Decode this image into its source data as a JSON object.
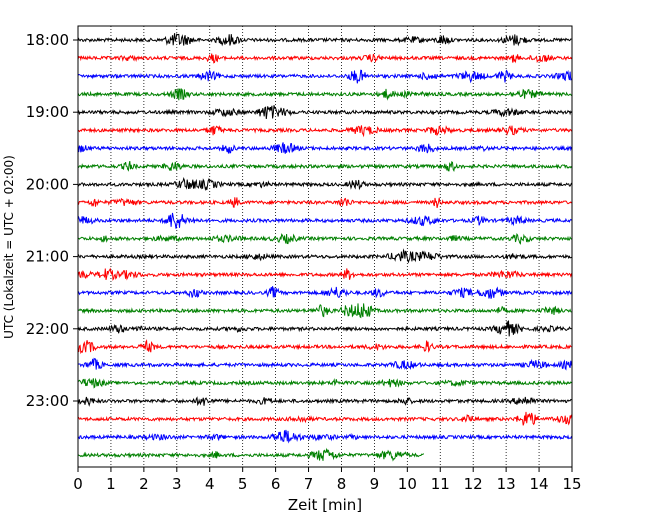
{
  "chart_data": {
    "type": "line",
    "title": "",
    "xlabel": "Zeit  [min]",
    "ylabel": "UTC (Lokalzeit = UTC + 02:00)",
    "xlim": [
      0,
      15
    ],
    "x_ticks": [
      "0",
      "1",
      "2",
      "3",
      "4",
      "5",
      "6",
      "7",
      "8",
      "9",
      "10",
      "11",
      "12",
      "13",
      "14",
      "15"
    ],
    "y_ticks": [
      "18:00",
      "19:00",
      "20:00",
      "21:00",
      "22:00",
      "23:00"
    ],
    "grid": "vertical-dotted",
    "trace_colors": [
      "#000000",
      "#ff0000",
      "#0000ff",
      "#008000"
    ],
    "trace_start_times": [
      "18:00",
      "18:15",
      "18:30",
      "18:45",
      "19:00",
      "19:15",
      "19:30",
      "19:45",
      "20:00",
      "20:15",
      "20:30",
      "20:45",
      "21:00",
      "21:15",
      "21:30",
      "21:45",
      "22:00",
      "22:15",
      "22:30",
      "22:45",
      "23:00",
      "23:15",
      "23:30",
      "23:45"
    ],
    "last_trace_end_min": 10.5
  }
}
